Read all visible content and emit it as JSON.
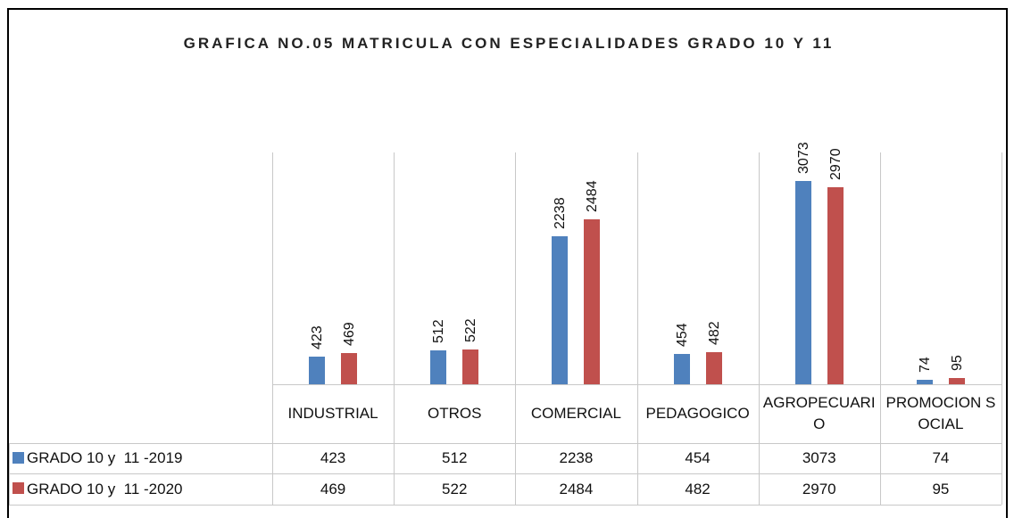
{
  "chart_data": {
    "type": "bar",
    "title": "GRAFICA NO.05 MATRICULA CON ESPECIALIDADES GRADO 10 Y 11",
    "categories": [
      "INDUSTRIAL",
      "OTROS",
      "COMERCIAL",
      "PEDAGOGICO",
      "AGROPECUARIO",
      "PROMOCION SOCIAL"
    ],
    "series": [
      {
        "name": "GRADO 10 y  11 -2019",
        "color": "#4f81bd",
        "values": [
          423,
          512,
          2238,
          454,
          3073,
          74
        ]
      },
      {
        "name": "GRADO 10 y  11 -2020",
        "color": "#c0504d",
        "values": [
          469,
          522,
          2484,
          482,
          2970,
          95
        ]
      }
    ],
    "ylim": [
      0,
      3500
    ]
  }
}
